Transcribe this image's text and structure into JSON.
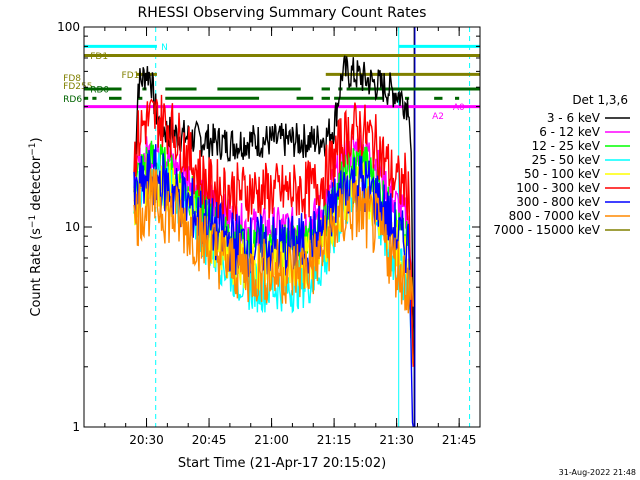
{
  "chart_data": {
    "type": "line",
    "title": "RHESSI Observing Summary Count Rates",
    "xlabel": "Start Time (21-Apr-17 20:15:02)",
    "ylabel_main": "Count Rate (s",
    "ylabel_exp": "−1",
    "ylabel_tail": " detector",
    "ylabel_end": ")",
    "yscale": "log",
    "ylim": [
      1,
      100
    ],
    "xlim_minutes": [
      0,
      95
    ],
    "y_ticks": [
      {
        "value": 1,
        "label": "1"
      },
      {
        "value": 10,
        "label": "10"
      },
      {
        "value": 100,
        "label": "100"
      }
    ],
    "x_ticks": [
      {
        "minutes": 15,
        "label": "20:30"
      },
      {
        "minutes": 30,
        "label": "20:45"
      },
      {
        "minutes": 45,
        "label": "21:00"
      },
      {
        "minutes": 60,
        "label": "21:15"
      },
      {
        "minutes": 75,
        "label": "21:30"
      },
      {
        "minutes": 90,
        "label": "21:45"
      }
    ],
    "legend_title": "Det 1,3,6",
    "legend_position": "right",
    "series": [
      {
        "name": "3 - 6 keV",
        "color": "#000000",
        "x": [
          12,
          13,
          14,
          15,
          16,
          17,
          18,
          20,
          25,
          30,
          35,
          40,
          45,
          50,
          55,
          58,
          60,
          62,
          65,
          70,
          72,
          75,
          76,
          77,
          78,
          78.5,
          79
        ],
        "y": [
          15,
          52,
          55,
          60,
          57,
          40,
          33,
          30,
          28,
          27,
          26,
          27,
          27,
          27,
          27,
          28,
          32,
          60,
          58,
          52,
          50,
          47,
          45,
          42,
          42,
          22,
          2
        ]
      },
      {
        "name": "6 - 12 keV",
        "color": "#ff00ff",
        "x": [
          12,
          13,
          15,
          17,
          20,
          25,
          30,
          35,
          40,
          45,
          50,
          55,
          58,
          60,
          62,
          64,
          66,
          68,
          70,
          72,
          74,
          76,
          78,
          79
        ],
        "y": [
          16,
          20,
          23,
          24,
          22,
          18,
          14,
          11,
          10,
          10,
          10,
          11,
          13,
          17,
          21,
          24,
          25,
          24,
          21,
          17,
          14,
          12,
          11,
          2
        ]
      },
      {
        "name": "12 - 25 keV",
        "color": "#00ff00",
        "x": [
          12,
          13,
          15,
          17,
          20,
          25,
          30,
          35,
          40,
          45,
          50,
          55,
          58,
          60,
          62,
          64,
          66,
          68,
          70,
          72,
          74,
          76,
          78,
          79
        ],
        "y": [
          14,
          18,
          21,
          22,
          19,
          15,
          11,
          8.5,
          8,
          8,
          8,
          8.5,
          11,
          14,
          17,
          20,
          21,
          20,
          17,
          14,
          11,
          9,
          8,
          2
        ]
      },
      {
        "name": "25 - 50 keV",
        "color": "#00ffff",
        "x": [
          12,
          13,
          15,
          17,
          20,
          25,
          30,
          35,
          40,
          45,
          50,
          55,
          58,
          60,
          62,
          64,
          66,
          68,
          70,
          72,
          74,
          76,
          78,
          79
        ],
        "y": [
          12,
          15,
          18,
          19,
          16,
          12,
          8,
          6,
          5,
          5,
          5,
          5.5,
          7,
          9,
          12,
          14,
          15,
          14,
          12,
          9,
          7,
          6,
          5,
          2
        ]
      },
      {
        "name": "50 - 100 keV",
        "color": "#ffff00",
        "x": [
          12,
          13,
          15,
          17,
          20,
          25,
          30,
          35,
          40,
          45,
          50,
          55,
          58,
          60,
          62,
          64,
          66,
          68,
          70,
          72,
          74,
          76,
          78,
          79
        ],
        "y": [
          12,
          15,
          17,
          18,
          16,
          12,
          9,
          7,
          6.5,
          6.5,
          6.5,
          7,
          9,
          11,
          13,
          15,
          16,
          15,
          13,
          11,
          9,
          7.5,
          7,
          2
        ]
      },
      {
        "name": "100 - 300 keV",
        "color": "#ff0000",
        "x": [
          12,
          13,
          14,
          15,
          17,
          19,
          21,
          23,
          25,
          28,
          30,
          35,
          40,
          45,
          50,
          55,
          58,
          60,
          62,
          64,
          66,
          68,
          70,
          72,
          74,
          76,
          77,
          78,
          79
        ],
        "y": [
          22,
          28,
          32,
          34,
          35,
          34,
          31,
          27,
          23,
          18,
          16,
          15,
          15,
          15,
          15,
          15.5,
          18,
          22,
          27,
          30,
          31,
          29,
          26,
          22,
          18,
          16,
          17,
          14,
          2
        ]
      },
      {
        "name": "300 - 800 keV",
        "color": "#0000ff",
        "x": [
          12,
          13,
          15,
          17,
          20,
          25,
          30,
          35,
          40,
          45,
          50,
          55,
          58,
          60,
          62,
          64,
          66,
          68,
          70,
          72,
          74,
          76,
          78,
          79
        ],
        "y": [
          13,
          15,
          17,
          18,
          16,
          13,
          10,
          8.5,
          8,
          8,
          8,
          8.5,
          10,
          13,
          15,
          17,
          17,
          16,
          14,
          12,
          10,
          8.5,
          8,
          1
        ]
      },
      {
        "name": "800 - 7000 keV",
        "color": "#ff8800",
        "x": [
          12,
          13,
          15,
          17,
          20,
          25,
          30,
          35,
          40,
          45,
          50,
          55,
          58,
          60,
          62,
          64,
          66,
          68,
          70,
          72,
          74,
          76,
          78,
          79
        ],
        "y": [
          10,
          12,
          13,
          13.5,
          12,
          10,
          8,
          6.5,
          6,
          6,
          6,
          6.5,
          8,
          10,
          11,
          12,
          12,
          11,
          10,
          8.5,
          7,
          6,
          5,
          4
        ]
      },
      {
        "name": "7000 - 15000 keV",
        "color": "#808000",
        "x": [],
        "y": []
      }
    ],
    "flag_bars": [
      {
        "label": "FD1",
        "color": "#808000",
        "y": 72,
        "label_minutes": 1.5,
        "segments": [
          [
            0,
            95
          ]
        ]
      },
      {
        "label": "FD1",
        "color": "#808000",
        "y": 58,
        "label_minutes": 9,
        "segments": [
          [
            12.5,
            17.5
          ],
          [
            58,
            95
          ]
        ]
      },
      {
        "label": "FD8",
        "color": "#808000",
        "y": 56,
        "label_minutes": -5,
        "segments": []
      },
      {
        "label": "FD255",
        "color": "#808000",
        "y": 51,
        "label_minutes": -5,
        "segments": []
      },
      {
        "label": "RD0",
        "color": "#006400",
        "y": 49,
        "label_minutes": 1.5,
        "segments": [
          [
            0,
            9
          ],
          [
            14,
            15
          ],
          [
            19.5,
            27
          ],
          [
            32,
            52
          ],
          [
            57,
            59
          ],
          [
            61,
            62
          ],
          [
            63,
            95
          ]
        ]
      },
      {
        "label": "RD6",
        "color": "#006400",
        "y": 44,
        "label_minutes": -5,
        "segments": [
          [
            0,
            1
          ],
          [
            2,
            3
          ],
          [
            6,
            9
          ],
          [
            13,
            14
          ],
          [
            19.5,
            42
          ],
          [
            51,
            55
          ],
          [
            57,
            59
          ],
          [
            60,
            72
          ],
          [
            74,
            76
          ],
          [
            77,
            78
          ],
          [
            84,
            86
          ],
          [
            89,
            90
          ]
        ]
      },
      {
        "label": "A0",
        "color": "#ff00ff",
        "y": 40,
        "label_minutes": 88.5,
        "segments": [
          [
            0,
            95
          ]
        ]
      },
      {
        "label": "N",
        "color": "#00ffff",
        "y": 80,
        "label_minutes": 18.5,
        "segments": [
          [
            0,
            17.5
          ],
          [
            75.5,
            95
          ]
        ]
      }
    ],
    "flag_labels_extra": [
      {
        "label": "A2",
        "color": "#ff00ff",
        "y": 38,
        "minutes": 83.5
      }
    ],
    "vertical_lines": [
      {
        "minutes": 17.2,
        "color": "#00ffff",
        "dash": true
      },
      {
        "minutes": 75.5,
        "color": "#00ffff",
        "dash": false
      },
      {
        "minutes": 79.2,
        "color": "#000000",
        "dash": false
      },
      {
        "minutes": 79.4,
        "color": "#0000ff",
        "dash": false
      },
      {
        "minutes": 92.5,
        "color": "#00ffff",
        "dash": true
      }
    ],
    "footer_timestamp": "31-Aug-2022 21:48"
  }
}
